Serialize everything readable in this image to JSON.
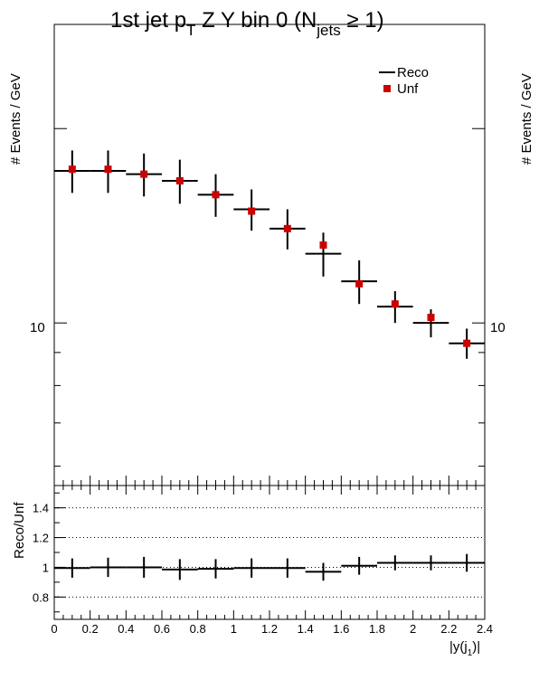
{
  "chart_data": {
    "type": "scatter",
    "title_main": "1st jet p",
    "title_sub_T": "T",
    "title_mid": " Z Y bin 0 (N",
    "title_sub_jets": "jets",
    "title_end": " ≥ 1)",
    "top_panel": {
      "ylabel": "# Events / GeV",
      "yscale": "log",
      "ylim": [
        5.6,
        29
      ],
      "labeled_ytick": "10",
      "legend": [
        "Reco",
        "Unf"
      ],
      "legend_placement": "top-right",
      "x_bin_edges": [
        0,
        0.2,
        0.4,
        0.6,
        0.8,
        1.0,
        1.2,
        1.4,
        1.6,
        1.8,
        2.0,
        2.2,
        2.4
      ],
      "series": [
        {
          "name": "Reco",
          "style": "horizontal bin segments with vertical error bars",
          "color": "#000000",
          "values": [
            17.2,
            17.2,
            17.0,
            16.6,
            15.8,
            15.0,
            14.0,
            12.8,
            11.6,
            10.6,
            10.0,
            9.3
          ],
          "errors": [
            1.3,
            1.3,
            1.3,
            1.3,
            1.2,
            1.1,
            1.0,
            1.0,
            0.9,
            0.6,
            0.5,
            0.5
          ]
        },
        {
          "name": "Unf",
          "style": "square markers",
          "color": "#cc0000",
          "values": [
            17.3,
            17.3,
            17.0,
            16.6,
            15.8,
            14.9,
            14.0,
            13.2,
            11.5,
            10.7,
            10.2,
            9.3
          ]
        }
      ]
    },
    "ratio_panel": {
      "ylabel": "Reco/Unf",
      "ylim": [
        0.65,
        1.55
      ],
      "yticks": [
        "0.8",
        "1",
        "1.2",
        "1.4"
      ],
      "ytick_values": [
        0.8,
        1.0,
        1.2,
        1.4
      ],
      "grid": "dotted horizontal at ticks",
      "xlabel_main": "|y(j",
      "xlabel_sub": "1",
      "xlabel_end": ")|",
      "xticks": [
        "0",
        "0.2",
        "0.4",
        "0.6",
        "0.8",
        "1",
        "1.2",
        "1.4",
        "1.6",
        "1.8",
        "2",
        "2.2",
        "2.4"
      ],
      "values": [
        0.995,
        1.0,
        1.0,
        0.985,
        0.99,
        0.995,
        0.995,
        0.97,
        1.01,
        1.03,
        1.03,
        1.03
      ],
      "errors": [
        0.065,
        0.065,
        0.07,
        0.07,
        0.065,
        0.065,
        0.065,
        0.06,
        0.06,
        0.05,
        0.05,
        0.06
      ]
    }
  }
}
